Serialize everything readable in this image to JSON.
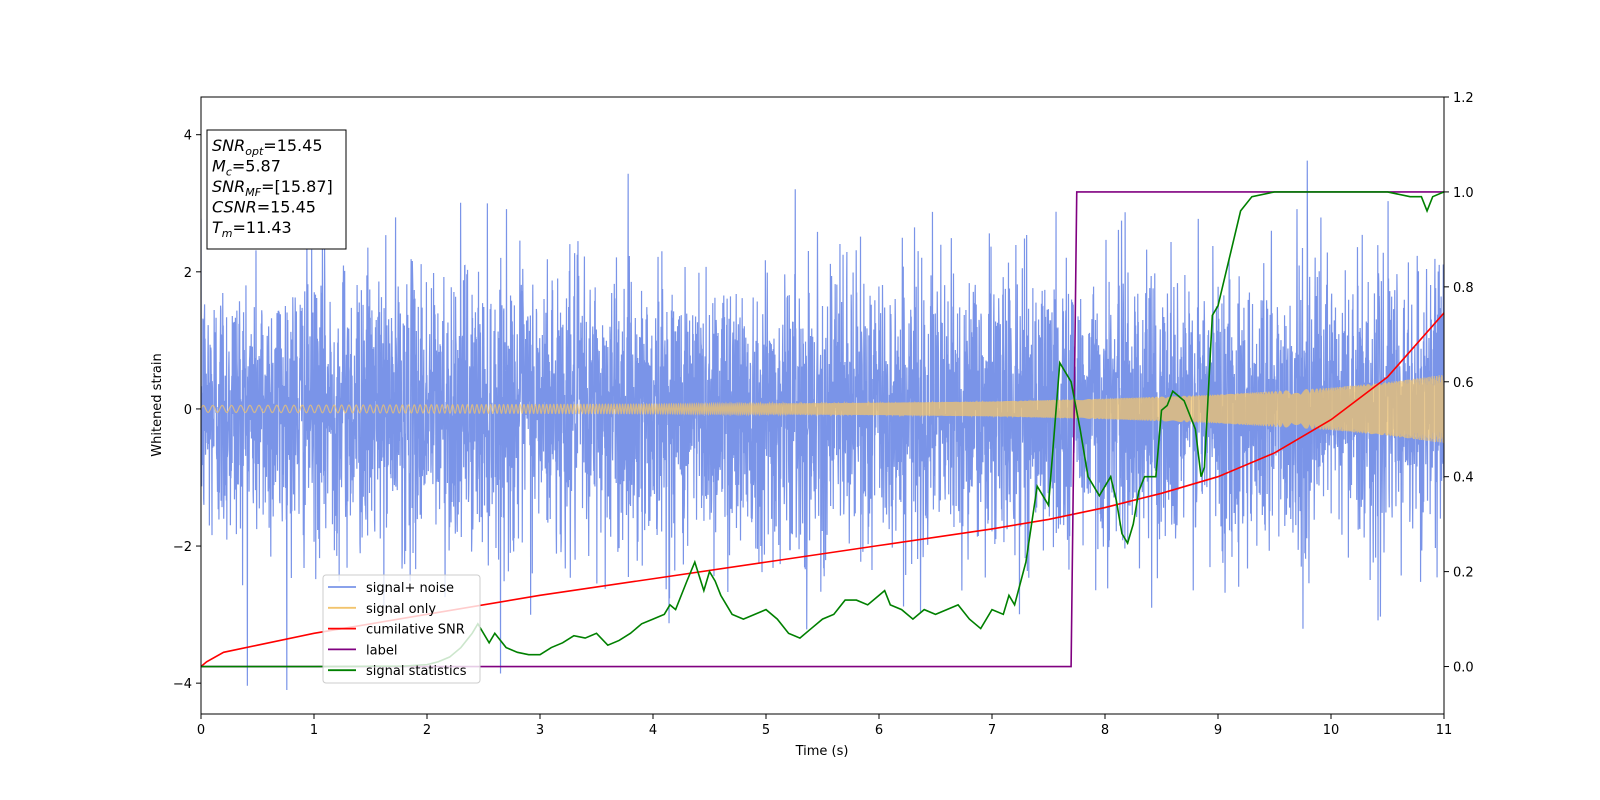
{
  "chart_data": {
    "type": "line",
    "xlabel": "Time (s)",
    "ylabel": "Whitened strain",
    "xlim": [
      0,
      11
    ],
    "ylim_left": [
      -4.45,
      4.55
    ],
    "ylim_right": [
      -0.1,
      1.2
    ],
    "xticks": [
      0,
      1,
      2,
      3,
      4,
      5,
      6,
      7,
      8,
      9,
      10,
      11
    ],
    "yticks_left": [
      -4,
      -2,
      0,
      2,
      4
    ],
    "yticks_right": [
      0.0,
      0.2,
      0.4,
      0.6,
      0.8,
      1.0,
      1.2
    ],
    "grid": false,
    "legend_position": "lower-left",
    "legend": [
      {
        "label": "signal+ noise",
        "color": "#7a95e8"
      },
      {
        "label": "signal only",
        "color": "#f2c46d"
      },
      {
        "label": "cumilative SNR",
        "color": "#ff0000"
      },
      {
        "label": "label",
        "color": "#800080"
      },
      {
        "label": "signal statistics",
        "color": "#008000"
      }
    ],
    "annotation": {
      "lines": [
        {
          "sym": "SNR",
          "sub": "opt",
          "value": "=15.45"
        },
        {
          "sym": "M",
          "sub": "c",
          "value": "=5.87"
        },
        {
          "sym": "SNR",
          "sub": "MF",
          "value": "=[15.87]"
        },
        {
          "sym": "CSNR",
          "sub": "",
          "value": "=15.45"
        },
        {
          "sym": "T",
          "sub": "m",
          "value": "=11.43"
        }
      ]
    },
    "series": [
      {
        "name": "signal+ noise",
        "axis": "left",
        "color": "#6f8be6",
        "kind": "noise",
        "std": 1.0,
        "max_abs": 4.1,
        "t_range": [
          0,
          11
        ]
      },
      {
        "name": "signal only",
        "axis": "left",
        "color": "#f2c46d",
        "kind": "chirp_envelope",
        "t": [
          0,
          2,
          4,
          6,
          7,
          8,
          9,
          10,
          10.5,
          11
        ],
        "amplitude": [
          0.05,
          0.06,
          0.07,
          0.09,
          0.11,
          0.15,
          0.21,
          0.31,
          0.39,
          0.5
        ]
      },
      {
        "name": "cumilative SNR",
        "axis": "right",
        "color": "#ff0000",
        "x": [
          0,
          0.05,
          0.2,
          0.5,
          1,
          2,
          3,
          4,
          5,
          6,
          7,
          7.5,
          8,
          8.5,
          9,
          9.5,
          10,
          10.5,
          11
        ],
        "y": [
          0.0,
          0.01,
          0.03,
          0.045,
          0.07,
          0.11,
          0.15,
          0.185,
          0.22,
          0.255,
          0.29,
          0.31,
          0.335,
          0.365,
          0.4,
          0.45,
          0.52,
          0.61,
          0.745
        ]
      },
      {
        "name": "label",
        "axis": "right",
        "color": "#800080",
        "x": [
          0,
          7.7,
          7.75,
          11
        ],
        "y": [
          0,
          0,
          1,
          1
        ]
      },
      {
        "name": "signal statistics",
        "axis": "right",
        "color": "#008000",
        "x": [
          0,
          1,
          1.8,
          2,
          2.1,
          2.2,
          2.3,
          2.4,
          2.45,
          2.55,
          2.6,
          2.7,
          2.8,
          2.9,
          3.0,
          3.1,
          3.2,
          3.3,
          3.4,
          3.5,
          3.6,
          3.7,
          3.8,
          3.9,
          4.0,
          4.1,
          4.15,
          4.2,
          4.3,
          4.37,
          4.45,
          4.5,
          4.55,
          4.6,
          4.7,
          4.8,
          4.9,
          5.0,
          5.1,
          5.2,
          5.3,
          5.4,
          5.5,
          5.6,
          5.7,
          5.8,
          5.9,
          6.0,
          6.05,
          6.1,
          6.2,
          6.3,
          6.4,
          6.5,
          6.6,
          6.7,
          6.8,
          6.9,
          7.0,
          7.1,
          7.15,
          7.2,
          7.3,
          7.4,
          7.5,
          7.6,
          7.7,
          7.78,
          7.85,
          7.95,
          8.05,
          8.1,
          8.15,
          8.2,
          8.25,
          8.3,
          8.35,
          8.45,
          8.5,
          8.55,
          8.6,
          8.7,
          8.8,
          8.85,
          8.88,
          8.95,
          9.0,
          9.1,
          9.2,
          9.3,
          9.5,
          9.7,
          9.9,
          10.2,
          10.5,
          10.7,
          10.8,
          10.85,
          10.9,
          11
        ],
        "y": [
          0.0,
          0.0,
          0.001,
          0.004,
          0.01,
          0.02,
          0.04,
          0.07,
          0.09,
          0.05,
          0.07,
          0.04,
          0.03,
          0.025,
          0.025,
          0.04,
          0.05,
          0.065,
          0.06,
          0.07,
          0.045,
          0.055,
          0.07,
          0.09,
          0.1,
          0.11,
          0.13,
          0.12,
          0.18,
          0.22,
          0.16,
          0.2,
          0.18,
          0.15,
          0.11,
          0.1,
          0.11,
          0.12,
          0.1,
          0.07,
          0.06,
          0.08,
          0.1,
          0.11,
          0.14,
          0.14,
          0.13,
          0.15,
          0.16,
          0.13,
          0.12,
          0.1,
          0.12,
          0.11,
          0.12,
          0.13,
          0.1,
          0.08,
          0.12,
          0.11,
          0.15,
          0.13,
          0.22,
          0.38,
          0.34,
          0.64,
          0.6,
          0.5,
          0.4,
          0.36,
          0.4,
          0.35,
          0.28,
          0.26,
          0.3,
          0.37,
          0.4,
          0.4,
          0.54,
          0.55,
          0.58,
          0.56,
          0.5,
          0.4,
          0.42,
          0.74,
          0.76,
          0.86,
          0.96,
          0.99,
          1.0,
          1.0,
          1.0,
          1.0,
          1.0,
          0.99,
          0.99,
          0.96,
          0.99,
          1.0
        ]
      }
    ]
  }
}
